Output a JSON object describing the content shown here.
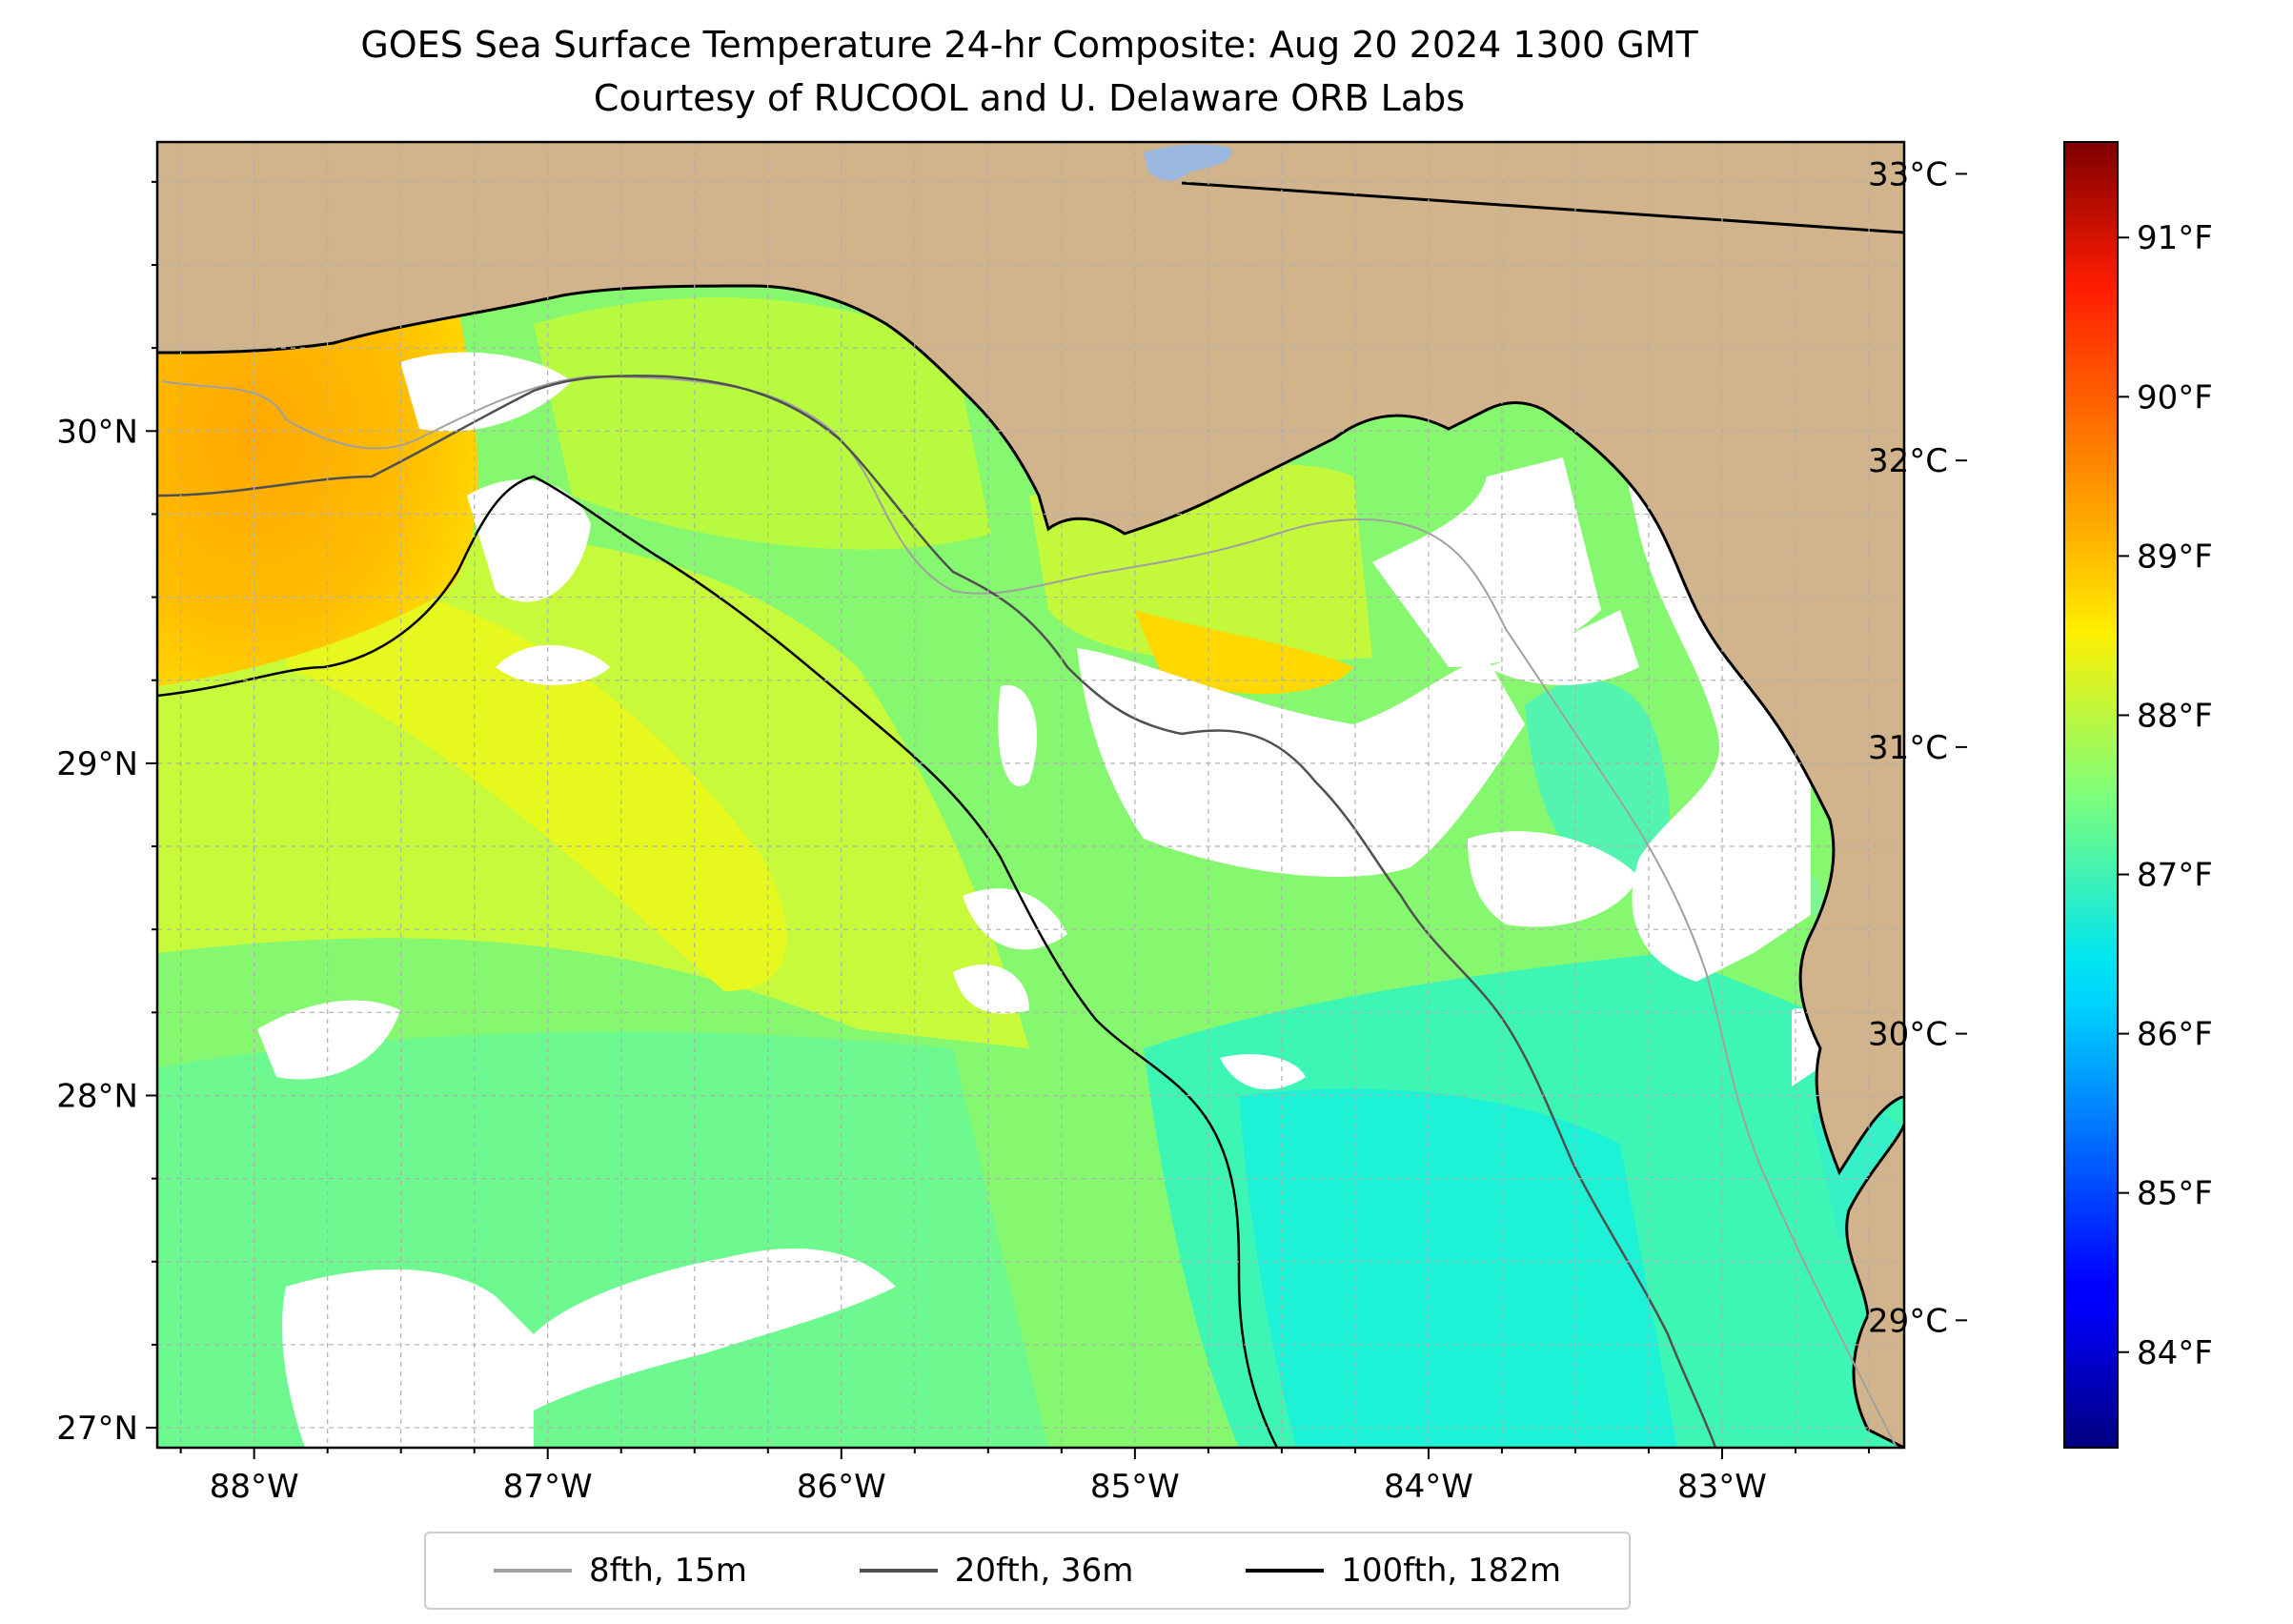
{
  "title": {
    "line1": "GOES Sea Surface Temperature 24-hr Composite: Aug 20 2024 1300 GMT",
    "line2": "Courtesy of RUCOOL and U. Delaware ORB Labs"
  },
  "map": {
    "lon_range": [
      -88.33,
      -82.38
    ],
    "lat_range": [
      26.94,
      30.87
    ],
    "lon_ticks": [
      {
        "value": -88,
        "label": "88°W"
      },
      {
        "value": -87,
        "label": "87°W"
      },
      {
        "value": -86,
        "label": "86°W"
      },
      {
        "value": -85,
        "label": "85°W"
      },
      {
        "value": -84,
        "label": "84°W"
      },
      {
        "value": -83,
        "label": "83°W"
      }
    ],
    "lat_ticks": [
      {
        "value": 27,
        "label": "27°N"
      },
      {
        "value": 28,
        "label": "28°N"
      },
      {
        "value": 29,
        "label": "29°N"
      },
      {
        "value": 30,
        "label": "30°N"
      }
    ],
    "colors": {
      "land": "#d2b48c",
      "no_data": "#ffffff",
      "lake": "#9ab8e0",
      "gridline": "#b0b0b0"
    }
  },
  "colorbar": {
    "range_f": [
      83.4,
      91.6
    ],
    "celsius_ticks": [
      {
        "value": 29,
        "label": "29°C"
      },
      {
        "value": 30,
        "label": "30°C"
      },
      {
        "value": 31,
        "label": "31°C"
      },
      {
        "value": 32,
        "label": "32°C"
      },
      {
        "value": 33,
        "label": "33°C"
      }
    ],
    "fahrenheit_ticks": [
      {
        "value": 84,
        "label": "84°F"
      },
      {
        "value": 85,
        "label": "85°F"
      },
      {
        "value": 86,
        "label": "86°F"
      },
      {
        "value": 87,
        "label": "87°F"
      },
      {
        "value": 88,
        "label": "88°F"
      },
      {
        "value": 89,
        "label": "89°F"
      },
      {
        "value": 90,
        "label": "90°F"
      },
      {
        "value": 91,
        "label": "91°F"
      }
    ],
    "colormap": "jet"
  },
  "legend": {
    "placement": "bottom-center",
    "entries": [
      {
        "label": "8fth, 15m",
        "color": "#a0a0a0"
      },
      {
        "label": "20fth, 36m",
        "color": "#505050"
      },
      {
        "label": "100fth, 182m",
        "color": "#000000"
      }
    ]
  }
}
